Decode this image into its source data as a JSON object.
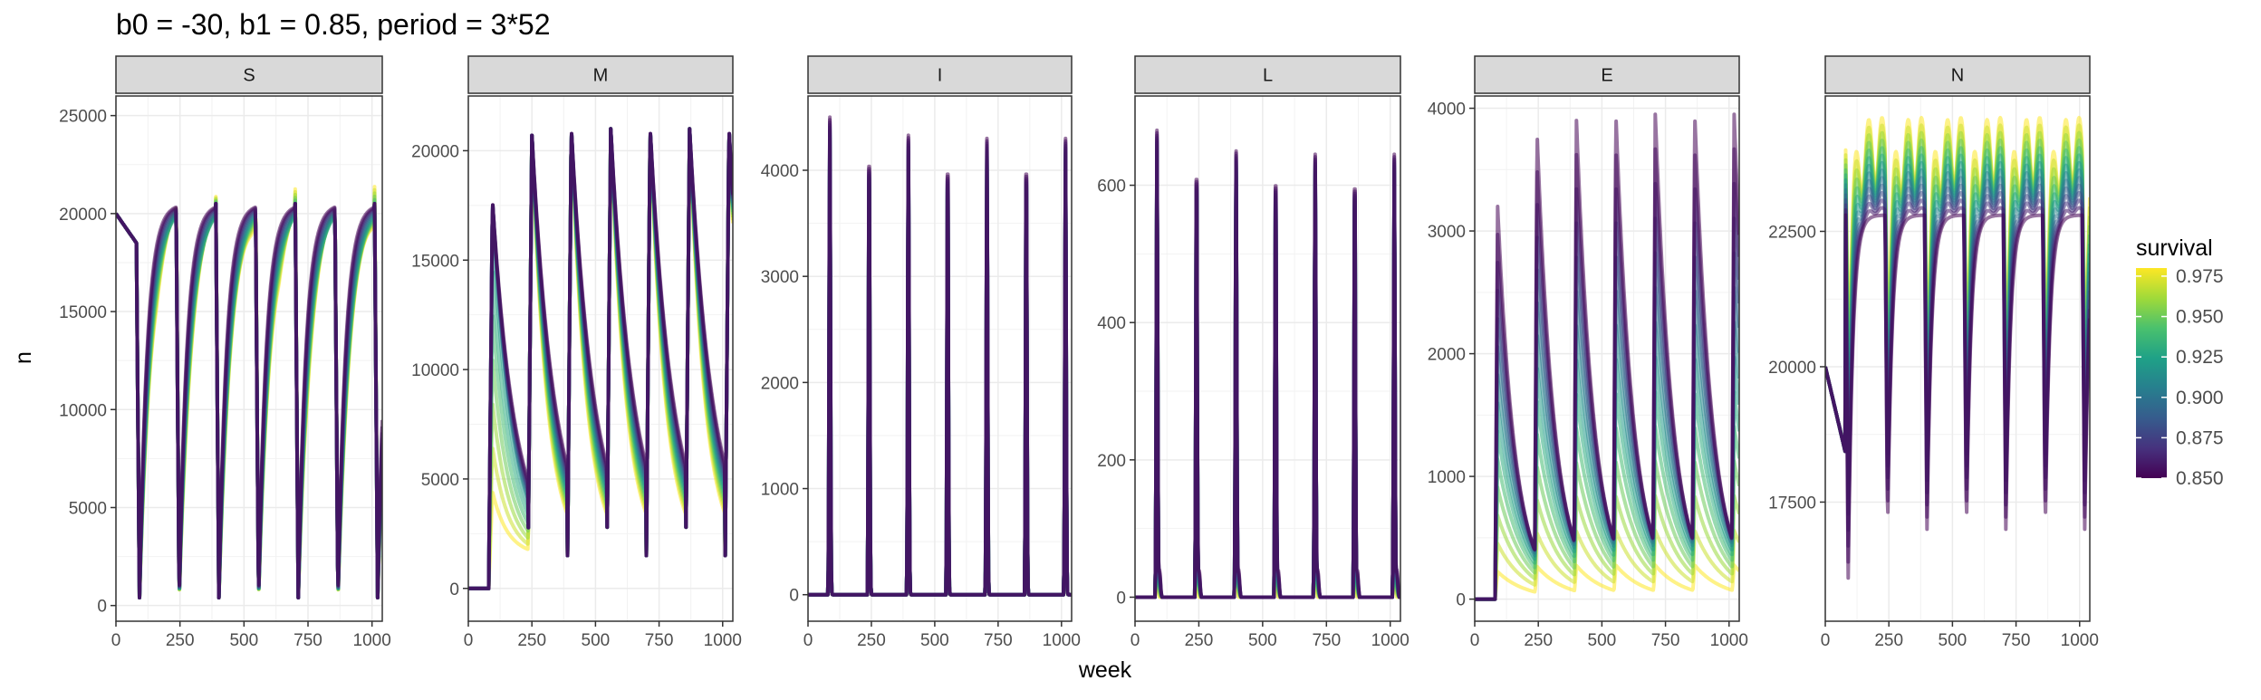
{
  "chart_data": {
    "type": "line",
    "title": "b0 = -30, b1 = 0.85, period = 3*52",
    "xlabel": "week",
    "ylabel": "n",
    "xlim": [
      0,
      1040
    ],
    "x_ticks": [
      0,
      250,
      500,
      750,
      1000
    ],
    "grid": true,
    "legend": {
      "title": "survival",
      "placement": "right",
      "type": "colorbar",
      "range": [
        0.85,
        0.98
      ],
      "ticks": [
        "0.850",
        "0.875",
        "0.900",
        "0.925",
        "0.950",
        "0.975"
      ],
      "colors": [
        "#440154",
        "#46327e",
        "#365c8d",
        "#277f8e",
        "#1fa187",
        "#4ac16d",
        "#a0da39",
        "#fde725"
      ]
    },
    "survival_levels": [
      0.85,
      0.86,
      0.87,
      0.88,
      0.89,
      0.9,
      0.91,
      0.92,
      0.93,
      0.94,
      0.95,
      0.96,
      0.97,
      0.98
    ],
    "panels": [
      {
        "label": "S",
        "ylim": [
          -800,
          26000
        ],
        "y_ticks": [
          0,
          5000,
          10000,
          15000,
          20000,
          25000
        ],
        "y_tick_labels": [
          "0",
          "5000",
          "10000",
          "15000",
          "20000",
          "25000"
        ],
        "start": 20000,
        "outbreak_weeks": [
          80,
          235,
          390,
          545,
          700,
          855,
          1010
        ],
        "trough": 400,
        "plateau": 20500
      },
      {
        "label": "M",
        "ylim": [
          -1500,
          22500
        ],
        "y_ticks": [
          0,
          5000,
          10000,
          15000,
          20000
        ],
        "y_tick_labels": [
          "0",
          "5000",
          "10000",
          "15000",
          "20000"
        ],
        "start": 0,
        "outbreak_weeks": [
          80,
          235,
          390,
          545,
          700,
          855,
          1010
        ],
        "peak": 21000,
        "first_peak": 17700,
        "trough": 1500
      },
      {
        "label": "I",
        "ylim": [
          -250,
          4700
        ],
        "y_ticks": [
          0,
          1000,
          2000,
          3000,
          4000
        ],
        "y_tick_labels": [
          "0",
          "1000",
          "2000",
          "3000",
          "4000"
        ],
        "outbreak_weeks": [
          80,
          235,
          390,
          545,
          700,
          855,
          1010
        ],
        "peaks": [
          4500,
          4380,
          4330,
          4300,
          4300,
          4300,
          4300
        ]
      },
      {
        "label": "L",
        "ylim": [
          -35,
          730
        ],
        "y_ticks": [
          0,
          200,
          400,
          600
        ],
        "y_tick_labels": [
          "0",
          "200",
          "400",
          "600"
        ],
        "outbreak_weeks": [
          80,
          235,
          390,
          545,
          700,
          855,
          1010
        ],
        "peaks": [
          680,
          660,
          650,
          650,
          645,
          645,
          645
        ]
      },
      {
        "label": "E",
        "ylim": [
          -180,
          4100
        ],
        "y_ticks": [
          0,
          1000,
          2000,
          3000,
          4000
        ],
        "y_tick_labels": [
          "0",
          "1000",
          "2000",
          "3000",
          "4000"
        ],
        "outbreak_weeks": [
          80,
          235,
          390,
          545,
          700,
          855,
          1010
        ],
        "peaks": [
          3200,
          3800,
          3900,
          3950,
          3950,
          3950,
          3950
        ]
      },
      {
        "label": "N",
        "ylim": [
          15300,
          25000
        ],
        "y_ticks": [
          17500,
          20000,
          22500
        ],
        "y_tick_labels": [
          "17500",
          "20000",
          "22500"
        ],
        "start": 20000,
        "outbreak_weeks": [
          80,
          235,
          390,
          545,
          700,
          855,
          1010
        ],
        "high": 24000,
        "low": 17000
      }
    ]
  }
}
